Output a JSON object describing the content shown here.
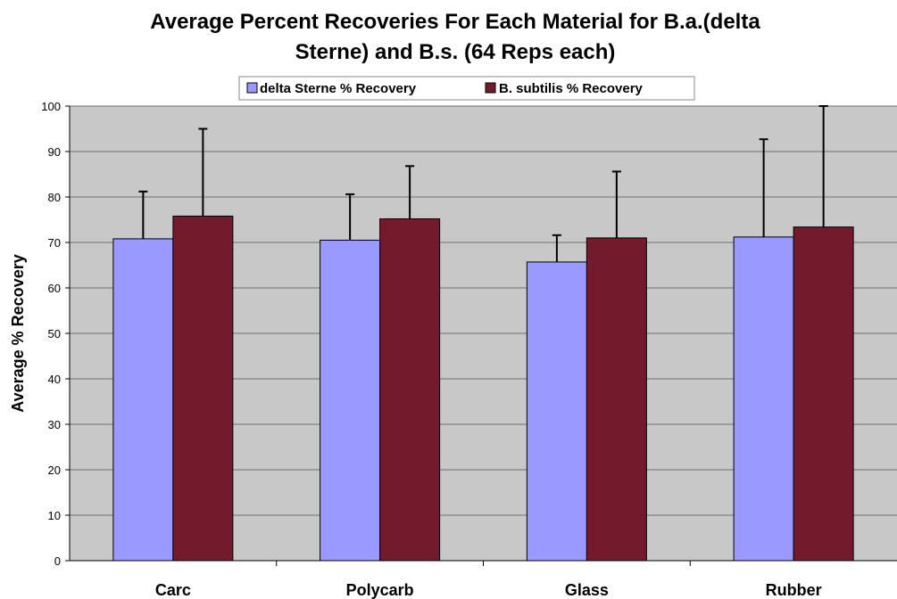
{
  "chart_data": {
    "type": "bar",
    "title_line1": "Average Percent Recoveries For Each Material for B.a.(delta",
    "title_line2": "Sterne) and B.s. (64 Reps each)",
    "xlabel": "",
    "ylabel": "Average % Recovery",
    "ylim": [
      0,
      100
    ],
    "yticks": [
      "0",
      "10",
      "20",
      "30",
      "40",
      "50",
      "60",
      "70",
      "80",
      "90",
      "100"
    ],
    "grid": true,
    "legend_position": "top-center",
    "categories": [
      "Carc",
      "Polycarb",
      "Glass",
      "Rubber"
    ],
    "series": [
      {
        "name": "delta Sterne % Recovery",
        "color": "#9999ff",
        "values": [
          70.8,
          70.5,
          65.7,
          71.2
        ],
        "error_upper": [
          81.2,
          80.6,
          71.6,
          92.7
        ]
      },
      {
        "name": "B. subtilis % Recovery",
        "color": "#731b2c",
        "values": [
          75.8,
          75.2,
          71.0,
          73.4
        ],
        "error_upper": [
          95.0,
          86.8,
          85.6,
          100.0
        ]
      }
    ],
    "colors": {
      "plot_background": "#c8c8c8",
      "gridline": "#6e6e6e"
    }
  }
}
